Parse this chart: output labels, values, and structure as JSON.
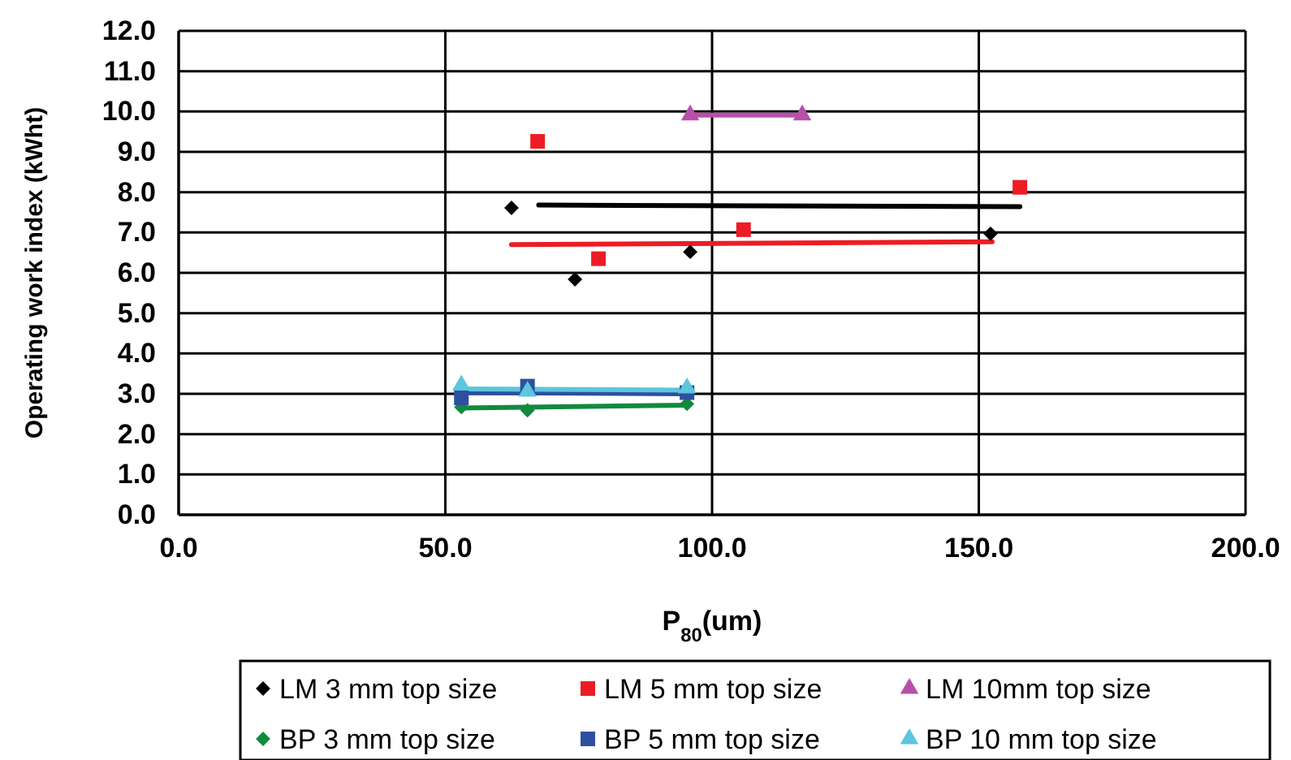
{
  "chart_data": {
    "type": "scatter",
    "xlabel": "P$_{80}$(um)",
    "ylabel": "Operating work index (kWht)",
    "xlim": [
      0,
      200
    ],
    "xticks": [
      {
        "value": 0,
        "label": "0.0"
      },
      {
        "value": 50,
        "label": "50.0"
      },
      {
        "value": 100,
        "label": "100.0"
      },
      {
        "value": 150,
        "label": "150.0"
      },
      {
        "value": 200,
        "label": "200.0"
      }
    ],
    "ylim": [
      0,
      12
    ],
    "yticks": [
      {
        "value": 0,
        "label": "0.0"
      },
      {
        "value": 1,
        "label": "1.0"
      },
      {
        "value": 2,
        "label": "2.0"
      },
      {
        "value": 3,
        "label": "3.0"
      },
      {
        "value": 4,
        "label": "4.0"
      },
      {
        "value": 5,
        "label": "5.0"
      },
      {
        "value": 6,
        "label": "6.0"
      },
      {
        "value": 7,
        "label": "7.0"
      },
      {
        "value": 8,
        "label": "8.0"
      },
      {
        "value": 9,
        "label": "9.0"
      },
      {
        "value": 10,
        "label": "10.0"
      },
      {
        "value": 11,
        "label": "11.0"
      },
      {
        "value": 12,
        "label": "12.0"
      }
    ],
    "grid": true,
    "legend": "bottom",
    "series": [
      {
        "type": "line",
        "color": "#000000",
        "marker": "none",
        "x": [
          67.5,
          157.7
        ],
        "values": [
          7.68,
          7.64
        ]
      },
      {
        "type": "line",
        "color": "#ed1c24",
        "marker": "none",
        "x": [
          62.4,
          152.5
        ],
        "values": [
          6.7,
          6.77
        ]
      },
      {
        "type": "line",
        "color": "#b94fa8",
        "marker": "none",
        "x": [
          95.9,
          116.9
        ],
        "values": [
          9.91,
          9.91
        ]
      },
      {
        "type": "line",
        "color": "#118a3e",
        "marker": "none",
        "x": [
          53,
          95.3
        ],
        "values": [
          2.65,
          2.72
        ]
      },
      {
        "type": "line",
        "color": "#2e4fa0",
        "marker": "none",
        "x": [
          53,
          95.3
        ],
        "values": [
          3.03,
          3.0
        ]
      },
      {
        "type": "line",
        "color": "#5bc6dc",
        "marker": "none",
        "x": [
          53,
          95.3
        ],
        "values": [
          3.12,
          3.09
        ]
      },
      {
        "name": "LM 3 mm top size",
        "color": "#000000",
        "marker": "diamond",
        "x": [
          62.4,
          74.3,
          95.9,
          152.2
        ],
        "values": [
          7.61,
          5.84,
          6.52,
          6.97
        ]
      },
      {
        "name": "LM 5 mm top size",
        "color": "#ed1c24",
        "marker": "square",
        "x": [
          67.3,
          78.7,
          105.9,
          157.7
        ],
        "values": [
          9.26,
          6.35,
          7.07,
          8.12
        ]
      },
      {
        "name": "LM 10mm top size",
        "color": "#b94fa8",
        "marker": "triangle",
        "x": [
          95.9,
          116.9
        ],
        "values": [
          9.91,
          9.91
        ]
      },
      {
        "name": "BP 3 mm top size",
        "color": "#118a3e",
        "marker": "diamond",
        "x": [
          53,
          65.4,
          95.3
        ],
        "values": [
          2.67,
          2.59,
          2.75
        ]
      },
      {
        "name": "BP 5 mm top size",
        "color": "#2e4fa0",
        "marker": "square",
        "x": [
          53,
          65.4,
          95.3
        ],
        "values": [
          2.9,
          3.19,
          3.03
        ]
      },
      {
        "name": "BP 10 mm top size",
        "color": "#5bc6dc",
        "marker": "triangle",
        "x": [
          53,
          65.4,
          95.3
        ],
        "values": [
          3.21,
          3.06,
          3.14
        ]
      }
    ]
  }
}
